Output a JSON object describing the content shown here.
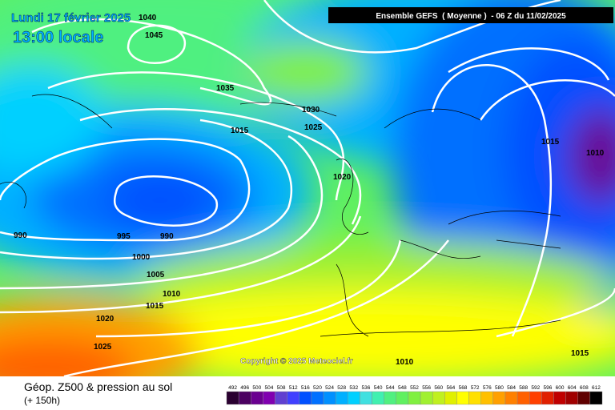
{
  "header": {
    "date": "Lundi 17 février 2025",
    "time": "13:00 locale",
    "run": "Ensemble GEFS  ( Moyenne )  - 06 Z du 11/02/2025"
  },
  "isobars": [
    "1040",
    "1045",
    "1035",
    "1030",
    "1025",
    "1015",
    "1020",
    "990",
    "995",
    "990",
    "1000",
    "1005",
    "1010",
    "1015",
    "1020",
    "1025",
    "1010",
    "1015",
    "1015",
    "1010"
  ],
  "copyright": "Copyright © 2025 Meteociel.fr",
  "footer": {
    "title": "Géop. Z500 & pression au sol",
    "lead": "(+ 150h)"
  },
  "scale": {
    "labels": [
      492,
      496,
      500,
      504,
      508,
      512,
      516,
      520,
      524,
      528,
      532,
      536,
      540,
      544,
      548,
      552,
      556,
      560,
      564,
      568,
      572,
      576,
      580,
      584,
      588,
      592,
      596,
      600,
      604,
      608,
      612
    ],
    "colors": [
      "#2a0030",
      "#4b0060",
      "#6a0090",
      "#8000b0",
      "#6040d0",
      "#4040ff",
      "#0050ff",
      "#0070ff",
      "#0090ff",
      "#00b0ff",
      "#00d0ff",
      "#40e0e0",
      "#40f0b0",
      "#50f080",
      "#60f060",
      "#80f040",
      "#a0f030",
      "#c0f020",
      "#e0f000",
      "#ffff00",
      "#ffe000",
      "#ffc000",
      "#ffa000",
      "#ff8000",
      "#ff6000",
      "#ff4000",
      "#e02000",
      "#c00000",
      "#a00000",
      "#600000",
      "#000000"
    ]
  }
}
